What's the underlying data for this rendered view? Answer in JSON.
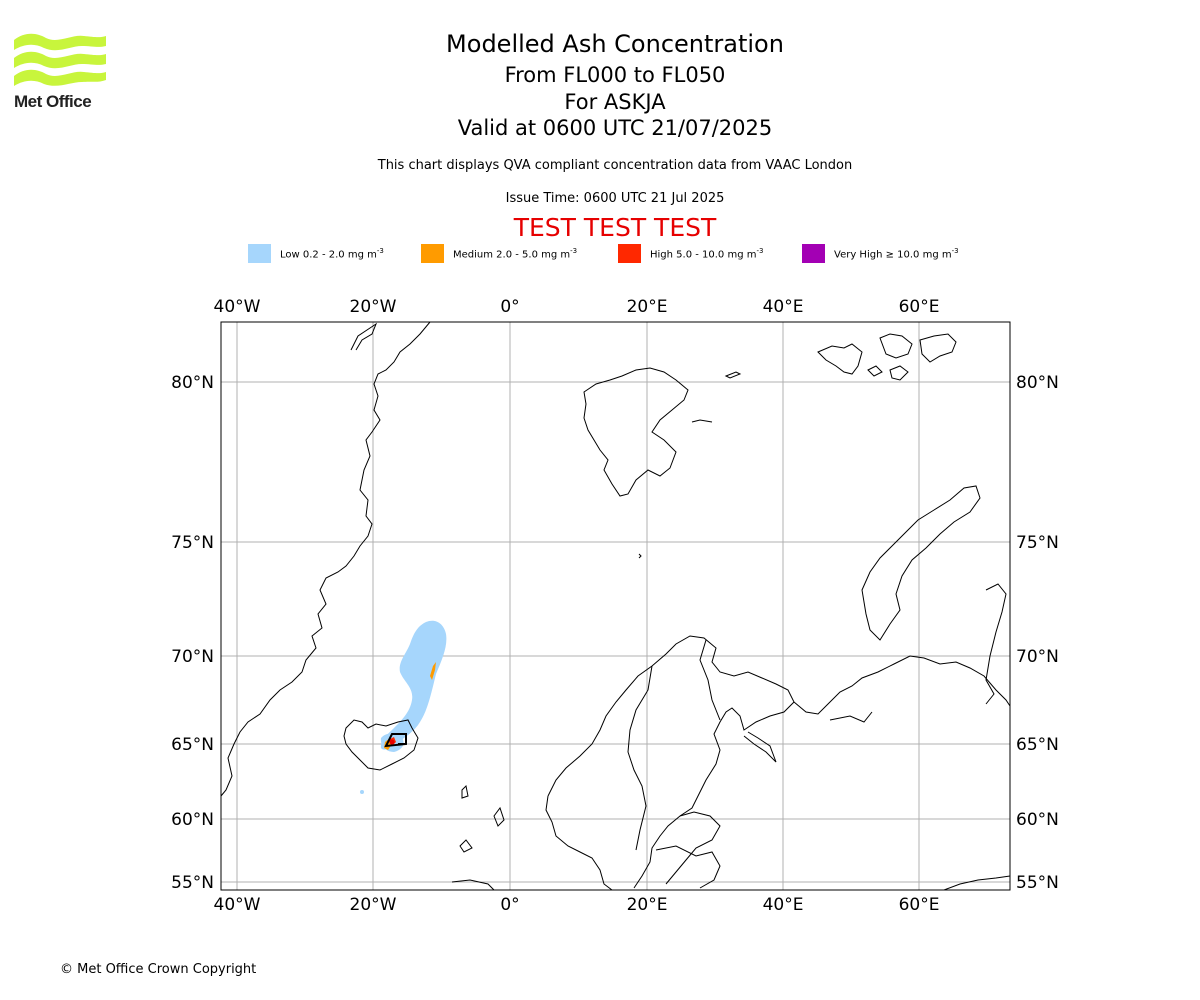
{
  "brand": {
    "logo_text": "Met Office"
  },
  "header": {
    "title": "Modelled Ash Concentration",
    "subtitle_levels": "From FL000 to FL050",
    "subtitle_volcano": "For ASKJA",
    "subtitle_valid": "Valid at 0600 UTC 21/07/2025",
    "description": "This chart displays QVA compliant concentration data from VAAC London",
    "issue_time": "Issue Time: 0600 UTC 21 Jul 2025",
    "test_banner": "TEST TEST TEST"
  },
  "legend": [
    {
      "label": "Low 0.2 - 2.0 mg m",
      "exp": "-3",
      "color": "#a6d6fc"
    },
    {
      "label": "Medium 2.0 - 5.0 mg m",
      "exp": "-3",
      "color": "#ff9b00"
    },
    {
      "label": "High 5.0 - 10.0 mg m",
      "exp": "-3",
      "color": "#ff2800"
    },
    {
      "label": "Very High ≥ 10.0 mg m",
      "exp": "-3",
      "color": "#a300b4"
    }
  ],
  "map": {
    "lon_labels": [
      "40°W",
      "20°W",
      "0°",
      "20°E",
      "40°E",
      "60°E"
    ],
    "lat_labels": [
      "80°N",
      "75°N",
      "70°N",
      "65°N",
      "60°N",
      "55°N"
    ],
    "colors": {
      "coast": "#000000",
      "grid": "#b0b0b0",
      "frame": "#000000",
      "test": "#e60000"
    }
  },
  "footer": {
    "copyright": "© Met Office Crown Copyright"
  }
}
